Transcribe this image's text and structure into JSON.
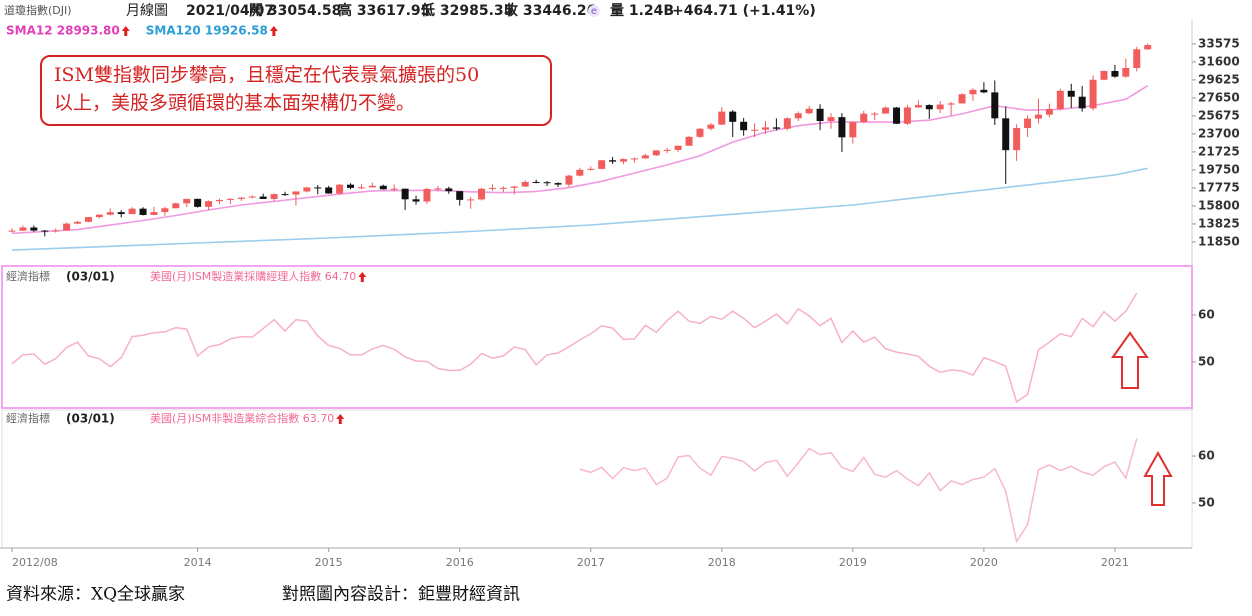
{
  "header": {
    "symbol": "道瓊指數(DJI)",
    "period": "月線圖",
    "date": "2021/04/07",
    "open": "開 33054.58",
    "high": "高 33617.95",
    "low": "低 32985.35",
    "close": "收 33446.26",
    "icon": "e",
    "volume": "量 1.24B",
    "change": "+464.71 (+1.41%)"
  },
  "annotation": [
    "ISM雙指數同步攀高，且穩定在代表景氣擴張的50",
    "以上，美股多頭循環的基本面架構仍不變。"
  ],
  "footer": {
    "source": "資料來源：XQ全球贏家",
    "design": "對照圖內容設計：鉅豐財經資訊"
  },
  "chart_data": {
    "type": "candlestick",
    "up_color": "#f25c5c",
    "down_color": "#111111",
    "x": [
      "2012/08",
      "2012/09",
      "2012/10",
      "2012/11",
      "2012/12",
      "2013/01",
      "2013/02",
      "2013/03",
      "2013/04",
      "2013/05",
      "2013/06",
      "2013/07",
      "2013/08",
      "2013/09",
      "2013/10",
      "2013/11",
      "2013/12",
      "2014/01",
      "2014/02",
      "2014/03",
      "2014/04",
      "2014/05",
      "2014/06",
      "2014/07",
      "2014/08",
      "2014/09",
      "2014/10",
      "2014/11",
      "2014/12",
      "2015/01",
      "2015/02",
      "2015/03",
      "2015/04",
      "2015/05",
      "2015/06",
      "2015/07",
      "2015/08",
      "2015/09",
      "2015/10",
      "2015/11",
      "2015/12",
      "2016/01",
      "2016/02",
      "2016/03",
      "2016/04",
      "2016/05",
      "2016/06",
      "2016/07",
      "2016/08",
      "2016/09",
      "2016/10",
      "2016/11",
      "2016/12",
      "2017/01",
      "2017/02",
      "2017/03",
      "2017/04",
      "2017/05",
      "2017/06",
      "2017/07",
      "2017/08",
      "2017/09",
      "2017/10",
      "2017/11",
      "2017/12",
      "2018/01",
      "2018/02",
      "2018/03",
      "2018/04",
      "2018/05",
      "2018/06",
      "2018/07",
      "2018/08",
      "2018/09",
      "2018/10",
      "2018/11",
      "2018/12",
      "2019/01",
      "2019/02",
      "2019/03",
      "2019/04",
      "2019/05",
      "2019/06",
      "2019/07",
      "2019/08",
      "2019/09",
      "2019/10",
      "2019/11",
      "2019/12",
      "2020/01",
      "2020/02",
      "2020/03",
      "2020/04",
      "2020/05",
      "2020/06",
      "2020/07",
      "2020/08",
      "2020/09",
      "2020/10",
      "2020/11",
      "2020/12",
      "2021/01",
      "2021/02",
      "2021/03",
      "2021/04"
    ],
    "open": [
      13009,
      13090,
      13437,
      13096,
      13025,
      13104,
      13861,
      14054,
      14579,
      14840,
      15116,
      14910,
      15500,
      14810,
      15130,
      15546,
      16086,
      16577,
      15699,
      16322,
      16458,
      16581,
      16717,
      16827,
      16563,
      17098,
      17043,
      17391,
      17828,
      17823,
      17165,
      18133,
      17776,
      17841,
      18011,
      17620,
      17690,
      16528,
      16285,
      17664,
      17720,
      17425,
      16466,
      16517,
      17685,
      17774,
      17787,
      17930,
      18432,
      18401,
      18308,
      18142,
      19124,
      19763,
      19864,
      20812,
      20663,
      20941,
      21009,
      21350,
      21891,
      21948,
      22405,
      23377,
      24272,
      24719,
      26149,
      25029,
      24103,
      24163,
      24416,
      24271,
      25415,
      25965,
      26458,
      25116,
      25538,
      23327,
      24999,
      25916,
      25929,
      26593,
      24815,
      26600,
      26864,
      26403,
      26917,
      27046,
      28051,
      28538,
      28256,
      25409,
      21917,
      24346,
      25383,
      25813,
      26428,
      28430,
      27782,
      26502,
      29639,
      30606,
      29983,
      30932,
      32982
    ],
    "high": [
      13330,
      13650,
      13660,
      13160,
      13330,
      13970,
      14150,
      14590,
      14890,
      15540,
      15340,
      15660,
      15660,
      15710,
      15720,
      16170,
      16590,
      16590,
      16400,
      16590,
      16630,
      16740,
      16980,
      17150,
      17150,
      17350,
      17400,
      17890,
      18100,
      18000,
      18200,
      18290,
      18170,
      18350,
      18140,
      18140,
      17700,
      16930,
      17800,
      17980,
      17900,
      17400,
      16800,
      17790,
      18170,
      17960,
      18020,
      18620,
      18670,
      18540,
      18400,
      19220,
      19990,
      20130,
      20850,
      21170,
      21010,
      21110,
      21540,
      21930,
      22180,
      22420,
      23490,
      24330,
      24880,
      26620,
      26310,
      25450,
      24860,
      25090,
      25400,
      25530,
      26170,
      26770,
      26950,
      25980,
      25980,
      25060,
      26240,
      26110,
      26700,
      26650,
      26910,
      27400,
      26960,
      27310,
      27200,
      28170,
      28700,
      29370,
      29570,
      26700,
      24760,
      25760,
      27580,
      27020,
      28660,
      29200,
      28960,
      30120,
      30640,
      31270,
      31960,
      33260,
      33617.95
    ],
    "low": [
      12880,
      13050,
      12970,
      12470,
      12880,
      13100,
      13780,
      14000,
      14440,
      14760,
      14550,
      14900,
      14760,
      14780,
      14720,
      15550,
      15700,
      15620,
      15340,
      16020,
      16010,
      16330,
      16630,
      16560,
      16330,
      16900,
      15850,
      17280,
      17070,
      17140,
      17040,
      17630,
      17640,
      17840,
      17600,
      17400,
      15370,
      15940,
      16010,
      17400,
      17140,
      15840,
      15500,
      16400,
      17480,
      17330,
      17060,
      17880,
      18280,
      17990,
      17880,
      17880,
      19050,
      19680,
      19830,
      20410,
      20380,
      20550,
      20990,
      21280,
      21600,
      21710,
      22400,
      23240,
      24070,
      24700,
      23360,
      23510,
      23340,
      23680,
      24080,
      24080,
      25120,
      25870,
      24120,
      24270,
      21710,
      22640,
      24880,
      25210,
      25950,
      24780,
      24680,
      26580,
      25340,
      25980,
      25740,
      27020,
      27330,
      28170,
      24680,
      18210,
      20740,
      23360,
      24840,
      25520,
      26280,
      26540,
      26140,
      26280,
      29580,
      29860,
      29860,
      30550,
      32900
    ],
    "close": [
      13090,
      13437,
      13096,
      13025,
      13104,
      13861,
      14054,
      14579,
      14840,
      15116,
      14910,
      15500,
      14810,
      15130,
      15546,
      16086,
      16577,
      15699,
      16322,
      16458,
      16581,
      16717,
      16827,
      16563,
      17098,
      17043,
      17391,
      17828,
      17823,
      17165,
      18133,
      17776,
      17841,
      18011,
      17620,
      17690,
      16528,
      16285,
      17664,
      17720,
      17425,
      16466,
      16517,
      17685,
      17774,
      17787,
      17930,
      18432,
      18401,
      18308,
      18142,
      19124,
      19763,
      19864,
      20812,
      20663,
      20941,
      21009,
      21350,
      21891,
      21948,
      22405,
      23377,
      24272,
      24719,
      26149,
      25029,
      24103,
      24163,
      24416,
      24271,
      25415,
      25965,
      26458,
      25116,
      25538,
      23327,
      24999,
      25916,
      25929,
      26593,
      24815,
      26600,
      26864,
      26403,
      26917,
      27046,
      28051,
      28538,
      28256,
      25409,
      21917,
      24346,
      25383,
      25813,
      26428,
      28430,
      27782,
      26502,
      29639,
      30606,
      29983,
      30932,
      32982,
      33446.26
    ],
    "series": [
      {
        "name": "SMA12 28993.80",
        "color": "#e23fb8",
        "line_color": "#f09ae0",
        "x": [
          "2012/08",
          "2012/11",
          "2013/02",
          "2013/05",
          "2013/08",
          "2013/11",
          "2014/02",
          "2014/05",
          "2014/08",
          "2014/11",
          "2015/02",
          "2015/05",
          "2015/08",
          "2015/11",
          "2016/02",
          "2016/05",
          "2016/08",
          "2016/11",
          "2017/02",
          "2017/05",
          "2017/08",
          "2017/11",
          "2018/02",
          "2018/05",
          "2018/08",
          "2018/11",
          "2019/02",
          "2019/05",
          "2019/08",
          "2019/11",
          "2020/02",
          "2020/05",
          "2020/08",
          "2020/11",
          "2021/02",
          "2021/04"
        ],
        "values": [
          12800,
          13000,
          13200,
          13700,
          14200,
          14750,
          15350,
          15900,
          16300,
          16700,
          17100,
          17450,
          17500,
          17500,
          17350,
          17250,
          17400,
          17800,
          18500,
          19400,
          20300,
          21300,
          22800,
          23900,
          24600,
          25000,
          25000,
          25000,
          25200,
          25900,
          26800,
          26300,
          26400,
          26800,
          27500,
          28993.8
        ]
      },
      {
        "name": "SMA120 19926.58",
        "color": "#2a9ed8",
        "line_color": "#9ccdec",
        "x": [
          "2012/08",
          "2014/01",
          "2015/01",
          "2016/01",
          "2017/01",
          "2018/01",
          "2019/01",
          "2020/01",
          "2021/01",
          "2021/04"
        ],
        "values": [
          10960,
          11730,
          12280,
          12940,
          13710,
          14800,
          15900,
          17550,
          19190,
          19926.58
        ]
      }
    ],
    "ylim": [
      9650,
      35100
    ],
    "yticks": [
      33575,
      31600,
      29625,
      27650,
      25675,
      23700,
      21725,
      19750,
      17775,
      15800,
      13825,
      11850
    ],
    "xticks": [
      "2012/08",
      {
        "value": "2014/01",
        "label": "2014"
      },
      {
        "value": "2015/01",
        "label": "2015"
      },
      {
        "value": "2016/01",
        "label": "2016"
      },
      {
        "value": "2017/01",
        "label": "2017"
      },
      {
        "value": "2018/01",
        "label": "2018"
      },
      {
        "value": "2019/01",
        "label": "2019"
      },
      {
        "value": "2020/01",
        "label": "2020"
      },
      {
        "value": "2021/01",
        "label": "2021"
      }
    ],
    "panels": [
      {
        "type": "line",
        "label": "經濟指標",
        "date": "(03/01)",
        "name": "美國(月)ISM製造業採購經理人指數 64.70",
        "color": "#f26a96",
        "line_color": "#f7b0cc",
        "ylim": [
          40.2,
          70
        ],
        "yticks": [
          60,
          50
        ],
        "values": [
          49.6,
          51.5,
          51.7,
          49.5,
          50.7,
          53.1,
          54.2,
          51.3,
          50.7,
          49.0,
          50.9,
          55.4,
          55.7,
          56.2,
          56.4,
          57.3,
          57.0,
          51.3,
          53.2,
          53.7,
          54.9,
          55.4,
          55.3,
          57.1,
          59.0,
          56.6,
          59.0,
          58.7,
          55.5,
          53.5,
          52.9,
          51.5,
          51.5,
          52.8,
          53.5,
          52.7,
          51.1,
          50.2,
          50.1,
          48.6,
          48.2,
          48.2,
          49.5,
          51.8,
          50.8,
          51.3,
          53.2,
          52.6,
          49.4,
          51.5,
          51.9,
          53.2,
          54.7,
          56.0,
          57.7,
          57.2,
          54.8,
          54.9,
          57.8,
          56.3,
          58.8,
          60.8,
          58.7,
          58.2,
          59.7,
          59.1,
          60.8,
          59.3,
          57.3,
          58.7,
          60.2,
          58.1,
          61.3,
          59.8,
          57.7,
          59.3,
          54.1,
          56.6,
          54.2,
          55.3,
          52.8,
          52.1,
          51.7,
          51.2,
          49.1,
          47.8,
          48.3,
          48.1,
          47.2,
          50.9,
          50.1,
          49.1,
          41.5,
          43.1,
          52.6,
          54.2,
          56.0,
          55.4,
          59.3,
          57.5,
          60.7,
          58.7,
          60.8,
          64.7,
          null
        ]
      },
      {
        "type": "line",
        "label": "經濟指標",
        "date": "(03/01)",
        "name": "美國(月)ISM非製造業綜合指數 63.70",
        "color": "#f26a96",
        "line_color": "#f7b8cc",
        "ylim": [
          40.4,
          69.8
        ],
        "yticks": [
          60,
          50
        ],
        "values": [
          null,
          null,
          null,
          null,
          null,
          null,
          null,
          null,
          null,
          null,
          null,
          null,
          null,
          null,
          null,
          null,
          null,
          null,
          null,
          null,
          null,
          null,
          null,
          null,
          null,
          null,
          null,
          null,
          null,
          null,
          null,
          null,
          null,
          null,
          null,
          null,
          null,
          null,
          null,
          null,
          null,
          null,
          null,
          null,
          null,
          null,
          null,
          null,
          null,
          null,
          null,
          null,
          57.2,
          56.5,
          57.6,
          55.2,
          57.5,
          56.9,
          57.4,
          53.9,
          55.3,
          59.8,
          60.1,
          57.4,
          55.9,
          59.9,
          59.5,
          58.8,
          56.8,
          58.6,
          59.1,
          55.7,
          58.5,
          61.6,
          60.3,
          60.7,
          57.6,
          56.7,
          59.7,
          56.1,
          55.5,
          56.9,
          55.1,
          53.7,
          56.4,
          52.6,
          54.7,
          53.9,
          55.0,
          55.5,
          57.3,
          52.5,
          41.8,
          45.4,
          57.1,
          58.1,
          56.9,
          57.8,
          56.6,
          55.9,
          57.7,
          58.7,
          55.3,
          63.7,
          null
        ]
      }
    ]
  }
}
